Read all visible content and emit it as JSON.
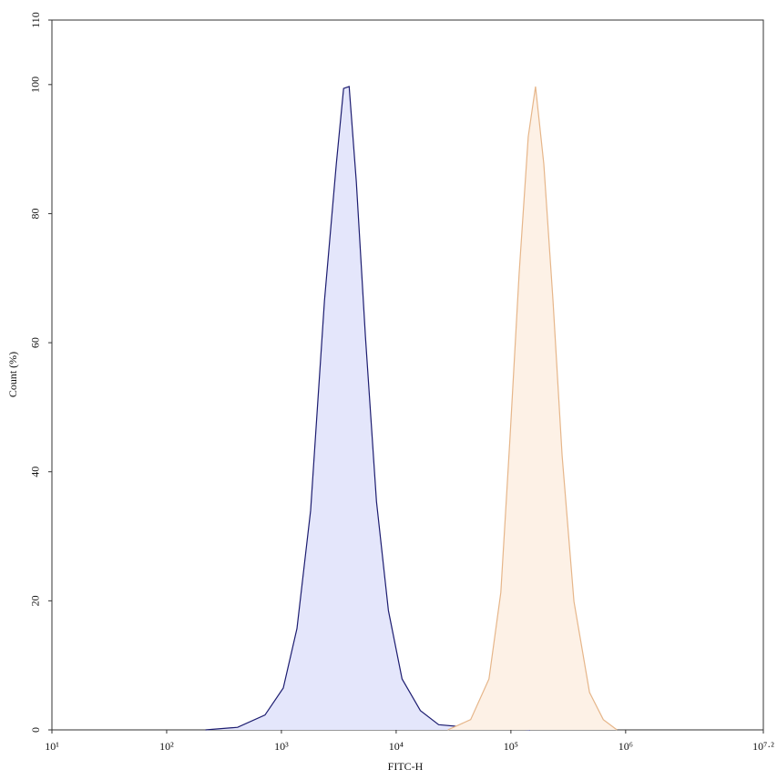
{
  "chart_data": {
    "type": "area",
    "xlabel": "FITC-H",
    "ylabel": "Count (%)",
    "xscale": "log",
    "xlim": [
      10,
      15848932
    ],
    "ylim": [
      0,
      110
    ],
    "xticks": [
      {
        "value": 10,
        "label": "10¹"
      },
      {
        "value": 100,
        "label": "10²"
      },
      {
        "value": 1000,
        "label": "10³"
      },
      {
        "value": 10000,
        "label": "10⁴"
      },
      {
        "value": 100000,
        "label": "10⁵"
      },
      {
        "value": 1000000,
        "label": "10⁶"
      },
      {
        "value": 15848932,
        "label": "10⁷·²"
      }
    ],
    "yticks": [
      0,
      20,
      40,
      60,
      80,
      100,
      110
    ],
    "series": [
      {
        "color": "#1c1c70",
        "fill": "#e4e6fb",
        "x": [
          218,
          415,
          719,
          1038,
          1366,
          1798,
          2371,
          3008,
          3483,
          3890,
          4500,
          5405,
          6740,
          8560,
          11270,
          16270,
          23490,
          48900,
          101900,
          146900
        ],
        "values": [
          0,
          0.4,
          2.3,
          6.5,
          15.7,
          34,
          66.5,
          87.7,
          99.4,
          99.7,
          84.9,
          60.9,
          35.4,
          18.5,
          7.9,
          3.0,
          0.8,
          0.3,
          0.3,
          0
        ]
      },
      {
        "color": "#e6b68a",
        "fill": "#fdf1e6",
        "x": [
          28200,
          44600,
          64400,
          81700,
          98200,
          118000,
          141700,
          164000,
          193600,
          232600,
          279300,
          354700,
          484400,
          638000,
          840000
        ],
        "values": [
          0,
          1.6,
          7.9,
          21.3,
          45.3,
          70.7,
          91.9,
          99.7,
          87.7,
          66.5,
          42.5,
          19.9,
          5.8,
          1.6,
          0
        ]
      }
    ]
  }
}
